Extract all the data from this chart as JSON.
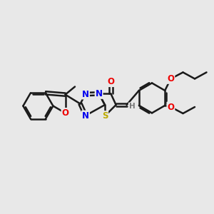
{
  "bg_color": "#e8e8e8",
  "bond_color": "#1a1a1a",
  "bond_width": 1.8,
  "atom_colors": {
    "N": "#0000ee",
    "O": "#ee0000",
    "S": "#bbaa00",
    "H": "#777777",
    "C": "#1a1a1a"
  },
  "font_size": 8.5,
  "figsize": [
    3.0,
    3.0
  ],
  "dpi": 100
}
